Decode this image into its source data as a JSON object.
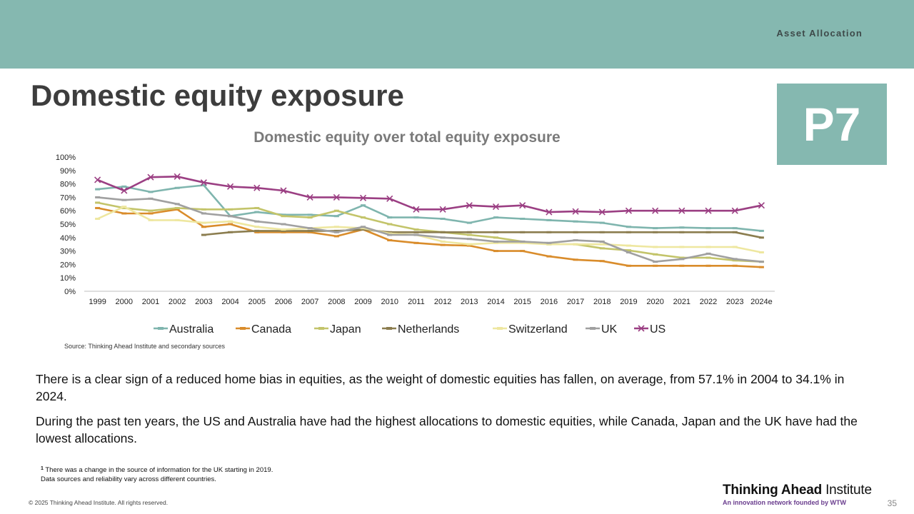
{
  "header": {
    "section": "Asset Allocation",
    "badge": "P7"
  },
  "page_title": "Domestic equity exposure",
  "colors": {
    "banner": "#85b8b0"
  },
  "chart_data": {
    "type": "line",
    "title": "Domestic equity over total equity exposure",
    "xlabel": "",
    "ylabel": "",
    "ylim": [
      0,
      100
    ],
    "yticks": [
      "0%",
      "10%",
      "20%",
      "30%",
      "40%",
      "50%",
      "60%",
      "70%",
      "80%",
      "90%",
      "100%"
    ],
    "categories": [
      "1999",
      "2000",
      "2001",
      "2002",
      "2003",
      "2004",
      "2005",
      "2006",
      "2007",
      "2008",
      "2009",
      "2010",
      "2011",
      "2012",
      "2013",
      "2014",
      "2015",
      "2016",
      "2017",
      "2018",
      "2019",
      "2020",
      "2021",
      "2022",
      "2023",
      "2024e"
    ],
    "legend_position": "bottom",
    "series": [
      {
        "name": "Australia",
        "color": "#7fb5ae",
        "marker": "dash",
        "values": [
          76,
          78,
          74,
          77,
          79,
          56,
          59,
          57,
          57,
          56,
          64,
          55,
          55,
          54,
          51,
          55,
          54,
          53,
          52,
          51,
          48,
          47,
          47.5,
          47,
          47,
          45
        ]
      },
      {
        "name": "Canada",
        "color": "#d98c2b",
        "marker": "dash",
        "values": [
          62,
          58,
          58,
          61,
          48,
          50,
          44,
          44,
          44,
          41,
          46,
          38,
          36,
          34.5,
          34,
          30,
          30,
          26,
          23.5,
          22.5,
          19,
          19,
          19,
          19,
          19,
          18
        ]
      },
      {
        "name": "Japan",
        "color": "#c3c46a",
        "marker": "dash",
        "values": [
          66,
          62,
          60,
          62,
          61,
          61,
          62,
          56,
          55,
          60,
          55,
          50,
          46,
          44,
          42,
          40,
          37,
          35,
          35,
          32,
          30.5,
          27.5,
          25,
          25,
          23,
          22
        ]
      },
      {
        "name": "Netherlands",
        "color": "#8b7d4f",
        "marker": "dash",
        "values": [
          null,
          null,
          null,
          null,
          42,
          44,
          45,
          45,
          45,
          45,
          46,
          44,
          44,
          44,
          44,
          44,
          44,
          44,
          44,
          44,
          44,
          44,
          44,
          44,
          44,
          40
        ]
      },
      {
        "name": "Switzerland",
        "color": "#eee7a0",
        "marker": "dash",
        "values": [
          54,
          63,
          53,
          53,
          51,
          52,
          48,
          46,
          47,
          48,
          47,
          43,
          42,
          37,
          35,
          36,
          36,
          35,
          35,
          35,
          34,
          33,
          33,
          33,
          33,
          29
        ]
      },
      {
        "name": "UK",
        "color": "#a0a0a0",
        "marker": "dash",
        "values": [
          70,
          68,
          69,
          65,
          58,
          56,
          52,
          50,
          47,
          44,
          48,
          42,
          42,
          40,
          39,
          37,
          37,
          36,
          38,
          37,
          29,
          22,
          24,
          28,
          24,
          22
        ]
      },
      {
        "name": "US",
        "color": "#9b3f83",
        "marker": "x",
        "values": [
          83,
          75,
          85,
          85.5,
          81,
          78,
          77,
          75,
          70,
          70,
          69.5,
          69,
          61,
          61,
          64,
          63,
          64,
          59,
          59.5,
          59,
          60,
          60,
          60,
          60,
          60,
          64
        ]
      }
    ]
  },
  "source": "Source: Thinking Ahead Institute and secondary sources",
  "paragraphs": [
    "There is a clear sign of a reduced home bias in equities, as the weight of domestic equities has fallen, on average, from 57.1% in 2004 to 34.1% in 2024.",
    "During the past ten years, the US and Australia have had the highest allocations to domestic equities, while Canada, Japan and the UK have had the lowest allocations."
  ],
  "footnote": {
    "marker": "1",
    "line1": "There was a change in the source of information for the UK starting in 2019.",
    "line2": "Data sources and reliability vary across different countries."
  },
  "footer": {
    "copyright": "© 2025 Thinking Ahead Institute. All rights reserved.",
    "logo_bold": "Thinking Ahead",
    "logo_rest": " Institute",
    "logo_tagline": "An innovation network founded by WTW",
    "page_number": "35"
  }
}
